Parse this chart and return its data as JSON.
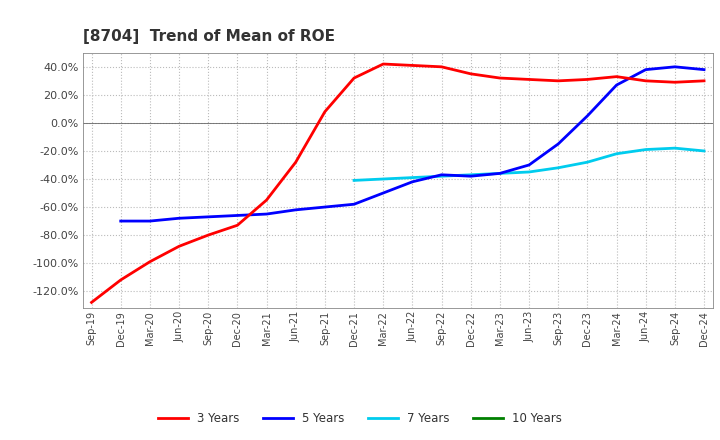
{
  "title": "[8704]  Trend of Mean of ROE",
  "title_fontsize": 11,
  "background_color": "#ffffff",
  "grid_color": "#bbbbbb",
  "ylim": [
    -1.32,
    0.5
  ],
  "yticks": [
    -1.2,
    -1.0,
    -0.8,
    -0.6,
    -0.4,
    -0.2,
    0.0,
    0.2,
    0.4
  ],
  "series": {
    "3 Years": {
      "color": "#ff0000",
      "linewidth": 2.0
    },
    "5 Years": {
      "color": "#0000ff",
      "linewidth": 2.0
    },
    "7 Years": {
      "color": "#00ccee",
      "linewidth": 2.0
    },
    "10 Years": {
      "color": "#008000",
      "linewidth": 2.0
    }
  },
  "xtick_labels": [
    "Sep-19",
    "Dec-19",
    "Mar-20",
    "Jun-20",
    "Sep-20",
    "Dec-20",
    "Mar-21",
    "Jun-21",
    "Sep-21",
    "Dec-21",
    "Mar-22",
    "Jun-22",
    "Sep-22",
    "Dec-22",
    "Mar-23",
    "Jun-23",
    "Sep-23",
    "Dec-23",
    "Mar-24",
    "Jun-24",
    "Sep-24",
    "Dec-24"
  ],
  "3yr_x": [
    0,
    1,
    2,
    3,
    4,
    5,
    6,
    7,
    8,
    9,
    10,
    11,
    12,
    13,
    14,
    15,
    16,
    17,
    18,
    19,
    20,
    21
  ],
  "3yr_y": [
    -1.28,
    -1.12,
    -0.99,
    -0.88,
    -0.8,
    -0.73,
    -0.55,
    -0.28,
    0.08,
    0.32,
    0.42,
    0.41,
    0.4,
    0.35,
    0.32,
    0.31,
    0.3,
    0.31,
    0.33,
    0.3,
    0.29,
    0.3
  ],
  "5yr_x": [
    1,
    2,
    3,
    4,
    5,
    6,
    7,
    8,
    9,
    10,
    11,
    12,
    13,
    14,
    15,
    16,
    17,
    18,
    19,
    20,
    21
  ],
  "5yr_y": [
    -0.7,
    -0.7,
    -0.68,
    -0.67,
    -0.66,
    -0.65,
    -0.62,
    -0.6,
    -0.58,
    -0.5,
    -0.42,
    -0.37,
    -0.38,
    -0.36,
    -0.3,
    -0.15,
    0.05,
    0.27,
    0.38,
    0.4,
    0.38
  ],
  "7yr_x": [
    9,
    10,
    11,
    12,
    13,
    14,
    15,
    16,
    17,
    18,
    19,
    20,
    21
  ],
  "7yr_y": [
    -0.41,
    -0.4,
    -0.39,
    -0.38,
    -0.37,
    -0.36,
    -0.35,
    -0.32,
    -0.28,
    -0.22,
    -0.19,
    -0.18,
    -0.2
  ],
  "10yr_x": [],
  "10yr_y": []
}
